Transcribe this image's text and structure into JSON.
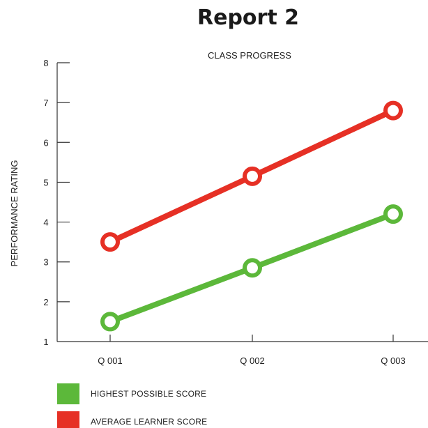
{
  "page": {
    "title": "Report 2"
  },
  "chart_data": {
    "type": "line",
    "title": "CLASS PROGRESS",
    "xlabel": "",
    "ylabel": "PERFORMANCE RATING",
    "categories": [
      "Q 001",
      "Q 002",
      "Q 003"
    ],
    "ylim": [
      1,
      8
    ],
    "yticks": [
      1,
      2,
      3,
      4,
      5,
      6,
      7,
      8
    ],
    "grid": false,
    "legend_position": "bottom-left",
    "series": [
      {
        "name": "HIGHEST POSSIBLE SCORE",
        "color": "#5cb83a",
        "values": [
          1.5,
          2.85,
          4.2
        ]
      },
      {
        "name": "AVERAGE LEARNER SCORE",
        "color": "#e63025",
        "values": [
          3.5,
          5.15,
          6.8
        ]
      }
    ]
  }
}
